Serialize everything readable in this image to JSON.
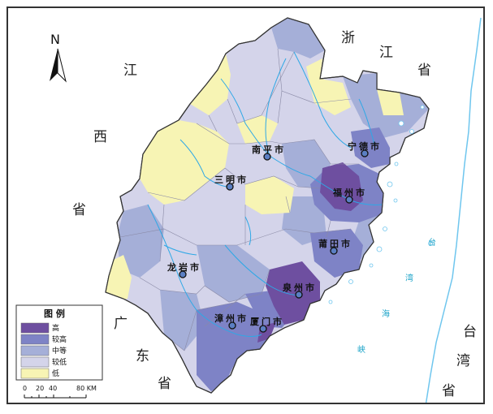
{
  "north_arrow": {
    "label": "N"
  },
  "neighbors": {
    "zhejiang": [
      "浙",
      "江",
      "省"
    ],
    "jiangxi": [
      "江",
      "西",
      "省"
    ],
    "guangdong": [
      "广",
      "东",
      "省"
    ],
    "taiwan": [
      "台",
      "湾",
      "省"
    ]
  },
  "sea": {
    "strait": [
      "台",
      "湾",
      "海",
      "峡"
    ]
  },
  "cities": [
    {
      "id": "nanping",
      "name": "南平市"
    },
    {
      "id": "ningde",
      "name": "宁德市"
    },
    {
      "id": "sanming",
      "name": "三明市"
    },
    {
      "id": "fuzhou",
      "name": "福州市"
    },
    {
      "id": "putian",
      "name": "莆田市"
    },
    {
      "id": "longyan",
      "name": "龙岩市"
    },
    {
      "id": "quanzhou",
      "name": "泉州市"
    },
    {
      "id": "zhangzhou",
      "name": "漳州市"
    },
    {
      "id": "xiamen",
      "name": "厦门市"
    }
  ],
  "legend": {
    "title": "图 例",
    "items": [
      {
        "label": "高",
        "color": "#6e4fa0"
      },
      {
        "label": "较高",
        "color": "#7e83c6"
      },
      {
        "label": "中等",
        "color": "#a5afd8"
      },
      {
        "label": "较低",
        "color": "#d4d4ea"
      },
      {
        "label": "低",
        "color": "#f7f4b4"
      }
    ]
  },
  "scale_bar": {
    "ticks": [
      "0",
      "20",
      "40",
      "80 KM"
    ]
  },
  "colors": {
    "river": "#2ea8e6",
    "coast": "#6fc6ee",
    "border": "#333333"
  }
}
